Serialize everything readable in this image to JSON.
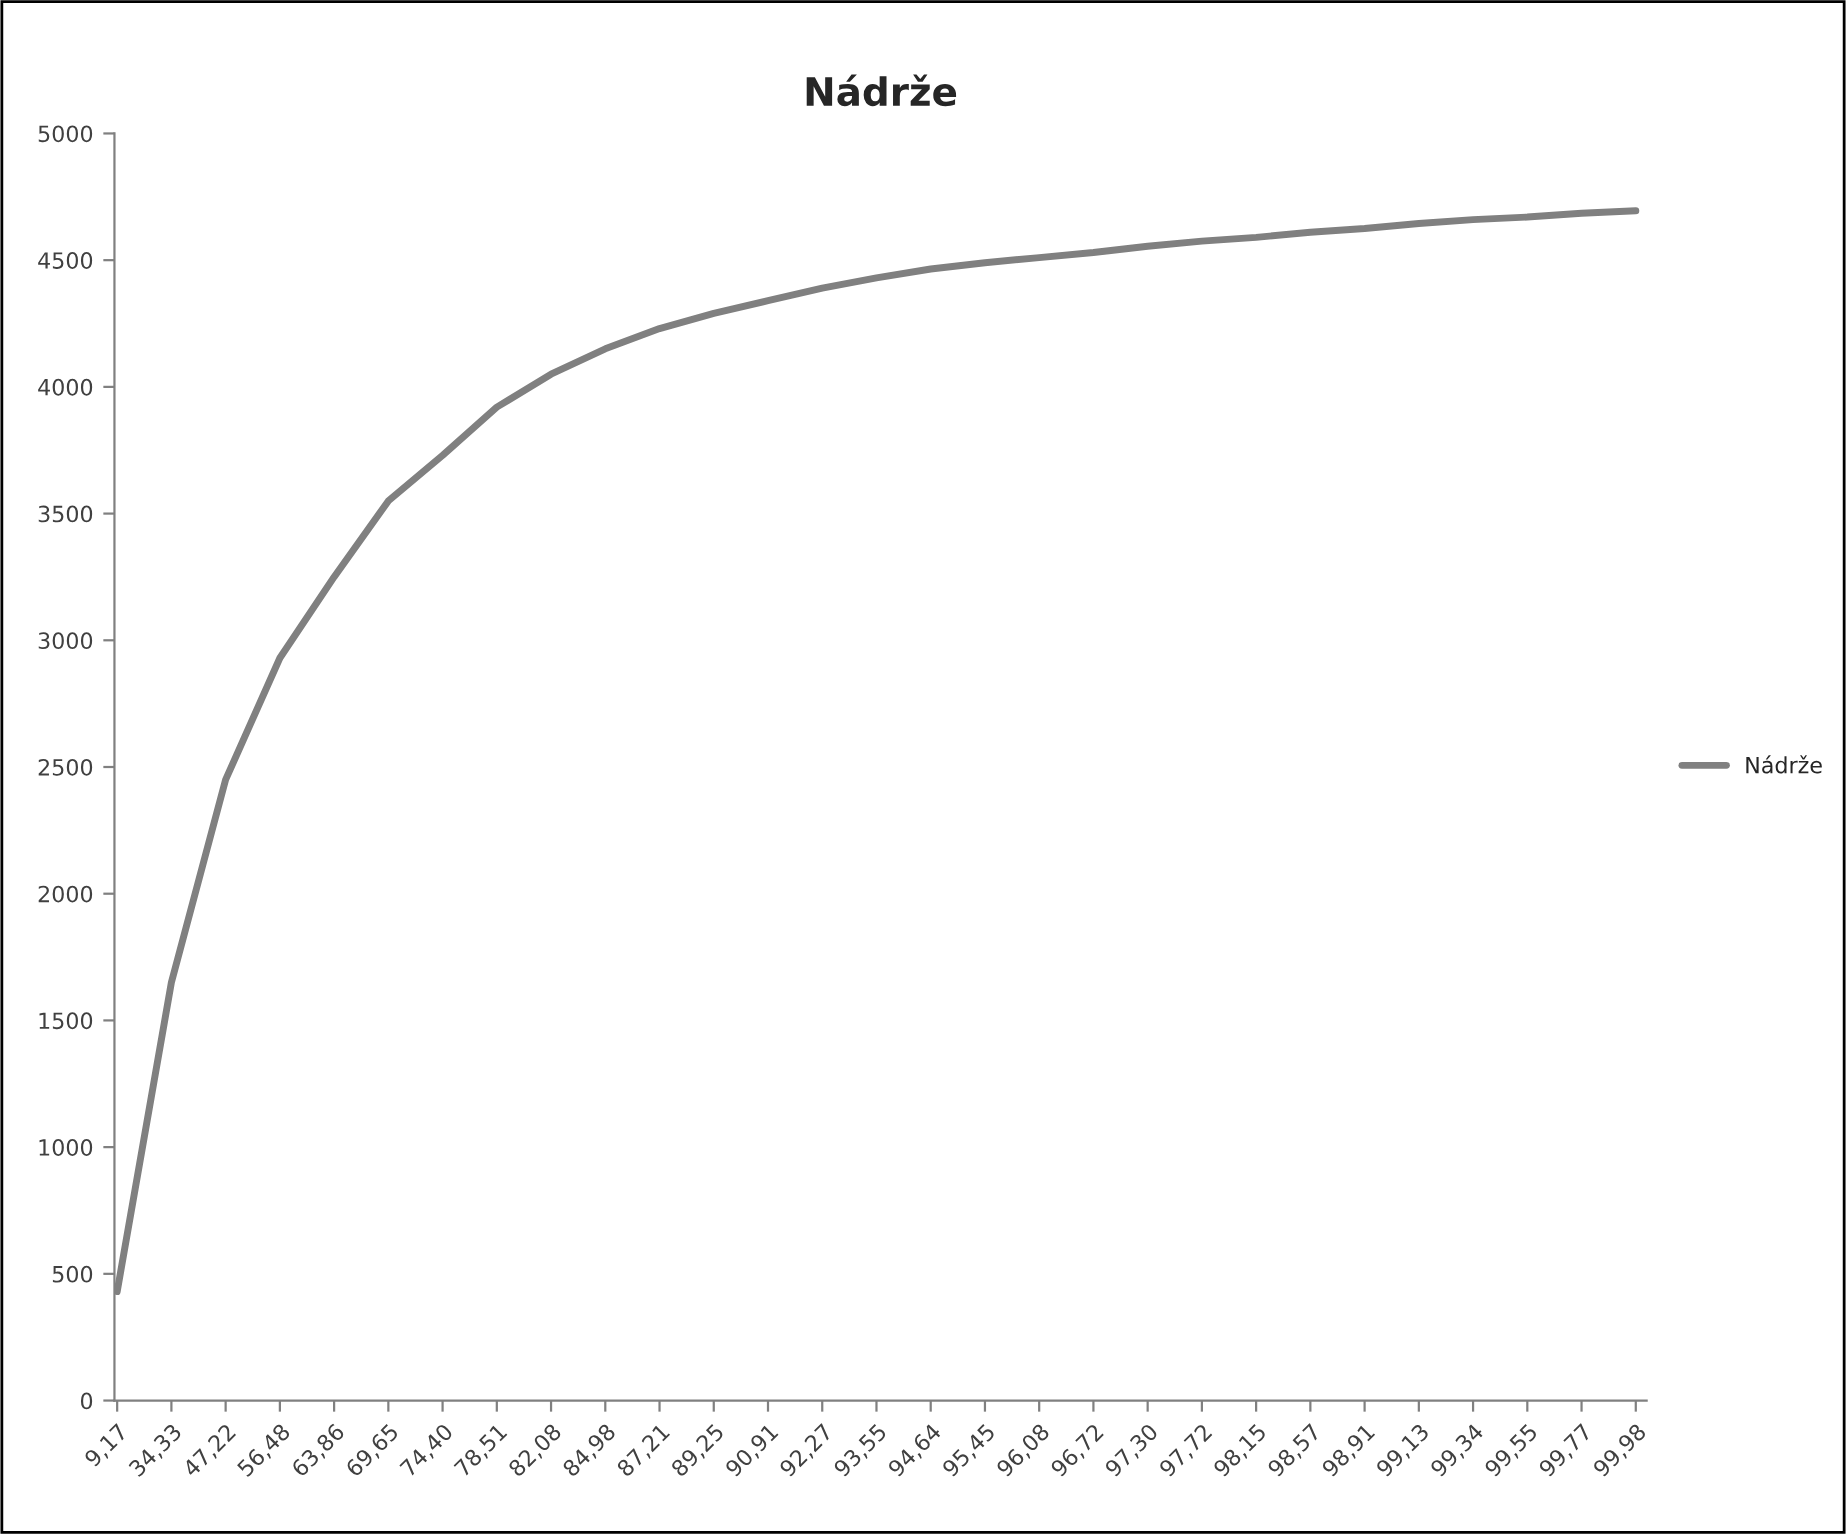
{
  "chart_data": {
    "type": "line",
    "title": "Nádrže",
    "categories": [
      "9,17",
      "34,33",
      "47,22",
      "56,48",
      "63,86",
      "69,65",
      "74,40",
      "78,51",
      "82,08",
      "84,98",
      "87,21",
      "89,25",
      "90,91",
      "92,27",
      "93,55",
      "94,64",
      "95,45",
      "96,08",
      "96,72",
      "97,30",
      "97,72",
      "98,15",
      "98,57",
      "98,91",
      "99,13",
      "99,34",
      "99,55",
      "99,77",
      "99,98"
    ],
    "series": [
      {
        "name": "Nádrže",
        "color": "#808080",
        "values": [
          430,
          1650,
          2450,
          2930,
          3250,
          3550,
          3730,
          3920,
          4050,
          4150,
          4230,
          4290,
          4340,
          4390,
          4430,
          4465,
          4490,
          4510,
          4530,
          4555,
          4575,
          4590,
          4610,
          4625,
          4645,
          4660,
          4670,
          4685,
          4695
        ]
      }
    ],
    "ylim": [
      0,
      5000
    ],
    "yticks": [
      0,
      500,
      1000,
      1500,
      2000,
      2500,
      3000,
      3500,
      4000,
      4500,
      5000
    ],
    "grid": false,
    "legend": "right",
    "marker": "none",
    "line_style": "solid"
  }
}
